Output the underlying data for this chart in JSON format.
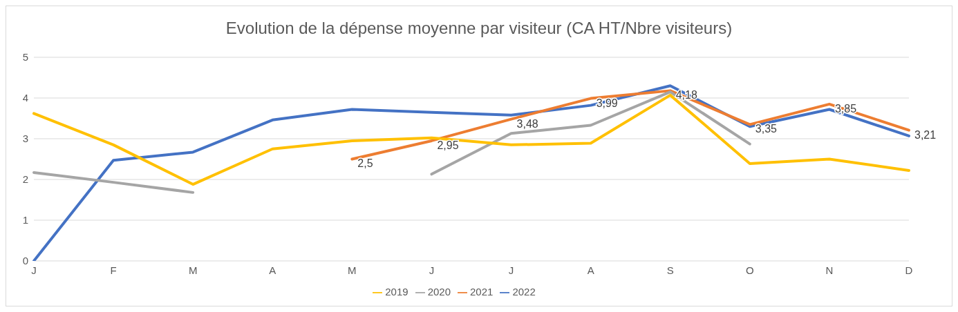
{
  "chart_data": {
    "type": "line",
    "title": "Evolution de la dépense moyenne par visiteur (CA HT/Nbre visiteurs)",
    "categories": [
      "J",
      "F",
      "M",
      "A",
      "M",
      "J",
      "J",
      "A",
      "S",
      "O",
      "N",
      "D"
    ],
    "series": [
      {
        "name": "2022",
        "color": "#4472c4",
        "values": [
          0,
          2.47,
          2.67,
          3.46,
          3.72,
          3.65,
          3.58,
          3.82,
          4.3,
          3.3,
          3.72,
          3.07
        ]
      },
      {
        "name": "2021",
        "color": "#ed7d31",
        "values": [
          null,
          null,
          null,
          null,
          2.5,
          2.95,
          3.48,
          3.99,
          4.18,
          3.35,
          3.85,
          3.21
        ],
        "value_labels": [
          null,
          null,
          null,
          null,
          "2,5",
          "2,95",
          "3,48",
          "3,99",
          "4,18",
          "3,35",
          "3,85",
          "3,21"
        ]
      },
      {
        "name": "2020",
        "color": "#a5a5a5",
        "values": [
          2.17,
          1.93,
          1.68,
          null,
          null,
          2.13,
          3.13,
          3.33,
          4.15,
          2.87,
          null,
          null
        ]
      },
      {
        "name": "2019",
        "color": "#ffc000",
        "values": [
          3.62,
          2.85,
          1.88,
          2.75,
          2.95,
          3.02,
          2.85,
          2.89,
          4.07,
          2.39,
          2.5,
          2.22
        ]
      }
    ],
    "ylim": [
      0,
      5
    ],
    "yticks": [
      0,
      1,
      2,
      3,
      4,
      5
    ],
    "grid": "y",
    "legend": "bottom",
    "marker": "none",
    "line_style": "solid"
  }
}
